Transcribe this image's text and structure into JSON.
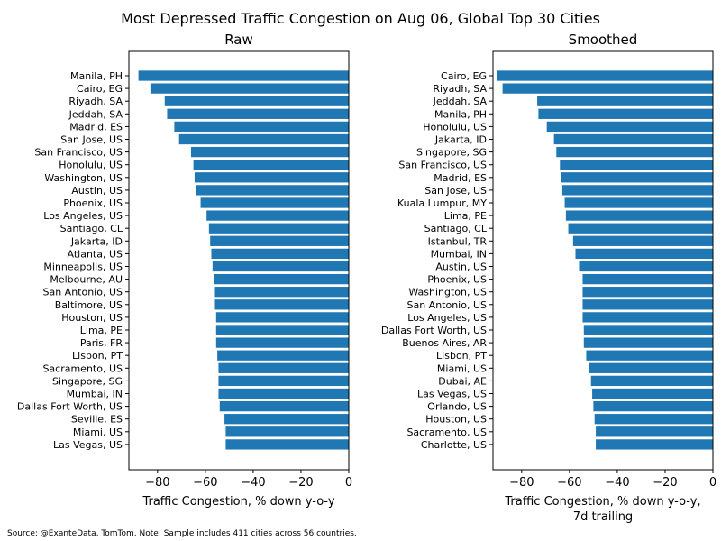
{
  "figure": {
    "title": "Most Depressed Traffic Congestion on Aug 06, Global Top 30 Cities",
    "footnote": "Source: @ExanteData, TomTom.   Note: Sample includes 411 cities across 56 countries.",
    "bar_color": "#1f77b4"
  },
  "chart_data": [
    {
      "type": "bar",
      "orientation": "horizontal",
      "title": "Raw",
      "xlabel": "Traffic Congestion, % down y-o-y",
      "xlim": [
        -92,
        0
      ],
      "xticks": [
        -80,
        -60,
        -40,
        -20,
        0
      ],
      "categories": [
        "Manila, PH",
        "Cairo, EG",
        "Riyadh, SA",
        "Jeddah, SA",
        "Madrid, ES",
        "San Jose, US",
        "San Francisco, US",
        "Honolulu, US",
        "Washington, US",
        "Austin, US",
        "Phoenix, US",
        "Los Angeles, US",
        "Santiago, CL",
        "Jakarta, ID",
        "Atlanta, US",
        "Minneapolis, US",
        "Melbourne, AU",
        "San Antonio, US",
        "Baltimore, US",
        "Houston, US",
        "Lima, PE",
        "Paris, FR",
        "Lisbon, PT",
        "Sacramento, US",
        "Singapore, SG",
        "Mumbai, IN",
        "Dallas Fort Worth, US",
        "Seville, ES",
        "Miami, US",
        "Las Vegas, US"
      ],
      "values": [
        -88,
        -83,
        -77,
        -76,
        -73,
        -71,
        -66,
        -65,
        -64.5,
        -64,
        -62,
        -59.5,
        -58.5,
        -58,
        -57.5,
        -57,
        -56.5,
        -56,
        -56,
        -55.5,
        -55.5,
        -55.5,
        -55,
        -54.5,
        -54.5,
        -54.5,
        -54,
        -52,
        -51.5,
        -51.5
      ]
    },
    {
      "type": "bar",
      "orientation": "horizontal",
      "title": "Smoothed",
      "xlabel": "Traffic Congestion, % down y-o-y,\n7d trailing",
      "xlim": [
        -92,
        0
      ],
      "xticks": [
        -80,
        -60,
        -40,
        -20,
        0
      ],
      "categories": [
        "Cairo, EG",
        "Riyadh, SA",
        "Jeddah, SA",
        "Manila, PH",
        "Honolulu, US",
        "Jakarta, ID",
        "Singapore, SG",
        "San Francisco, US",
        "Madrid, ES",
        "San Jose, US",
        "Kuala Lumpur, MY",
        "Lima, PE",
        "Santiago, CL",
        "Istanbul, TR",
        "Mumbai, IN",
        "Austin, US",
        "Phoenix, US",
        "Washington, US",
        "San Antonio, US",
        "Los Angeles, US",
        "Dallas Fort Worth, US",
        "Buenos Aires, AR",
        "Lisbon, PT",
        "Miami, US",
        "Dubai, AE",
        "Las Vegas, US",
        "Orlando, US",
        "Houston, US",
        "Sacramento, US",
        "Charlotte, US"
      ],
      "values": [
        -90.5,
        -88,
        -73.5,
        -73,
        -69.5,
        -66.5,
        -65.5,
        -64,
        -63.5,
        -63,
        -62,
        -61.5,
        -60.5,
        -58.5,
        -57.5,
        -56,
        -54.5,
        -54.5,
        -54.5,
        -54.5,
        -54,
        -54,
        -53,
        -52,
        -51,
        -50.5,
        -50,
        -49.5,
        -49,
        -49
      ]
    }
  ]
}
